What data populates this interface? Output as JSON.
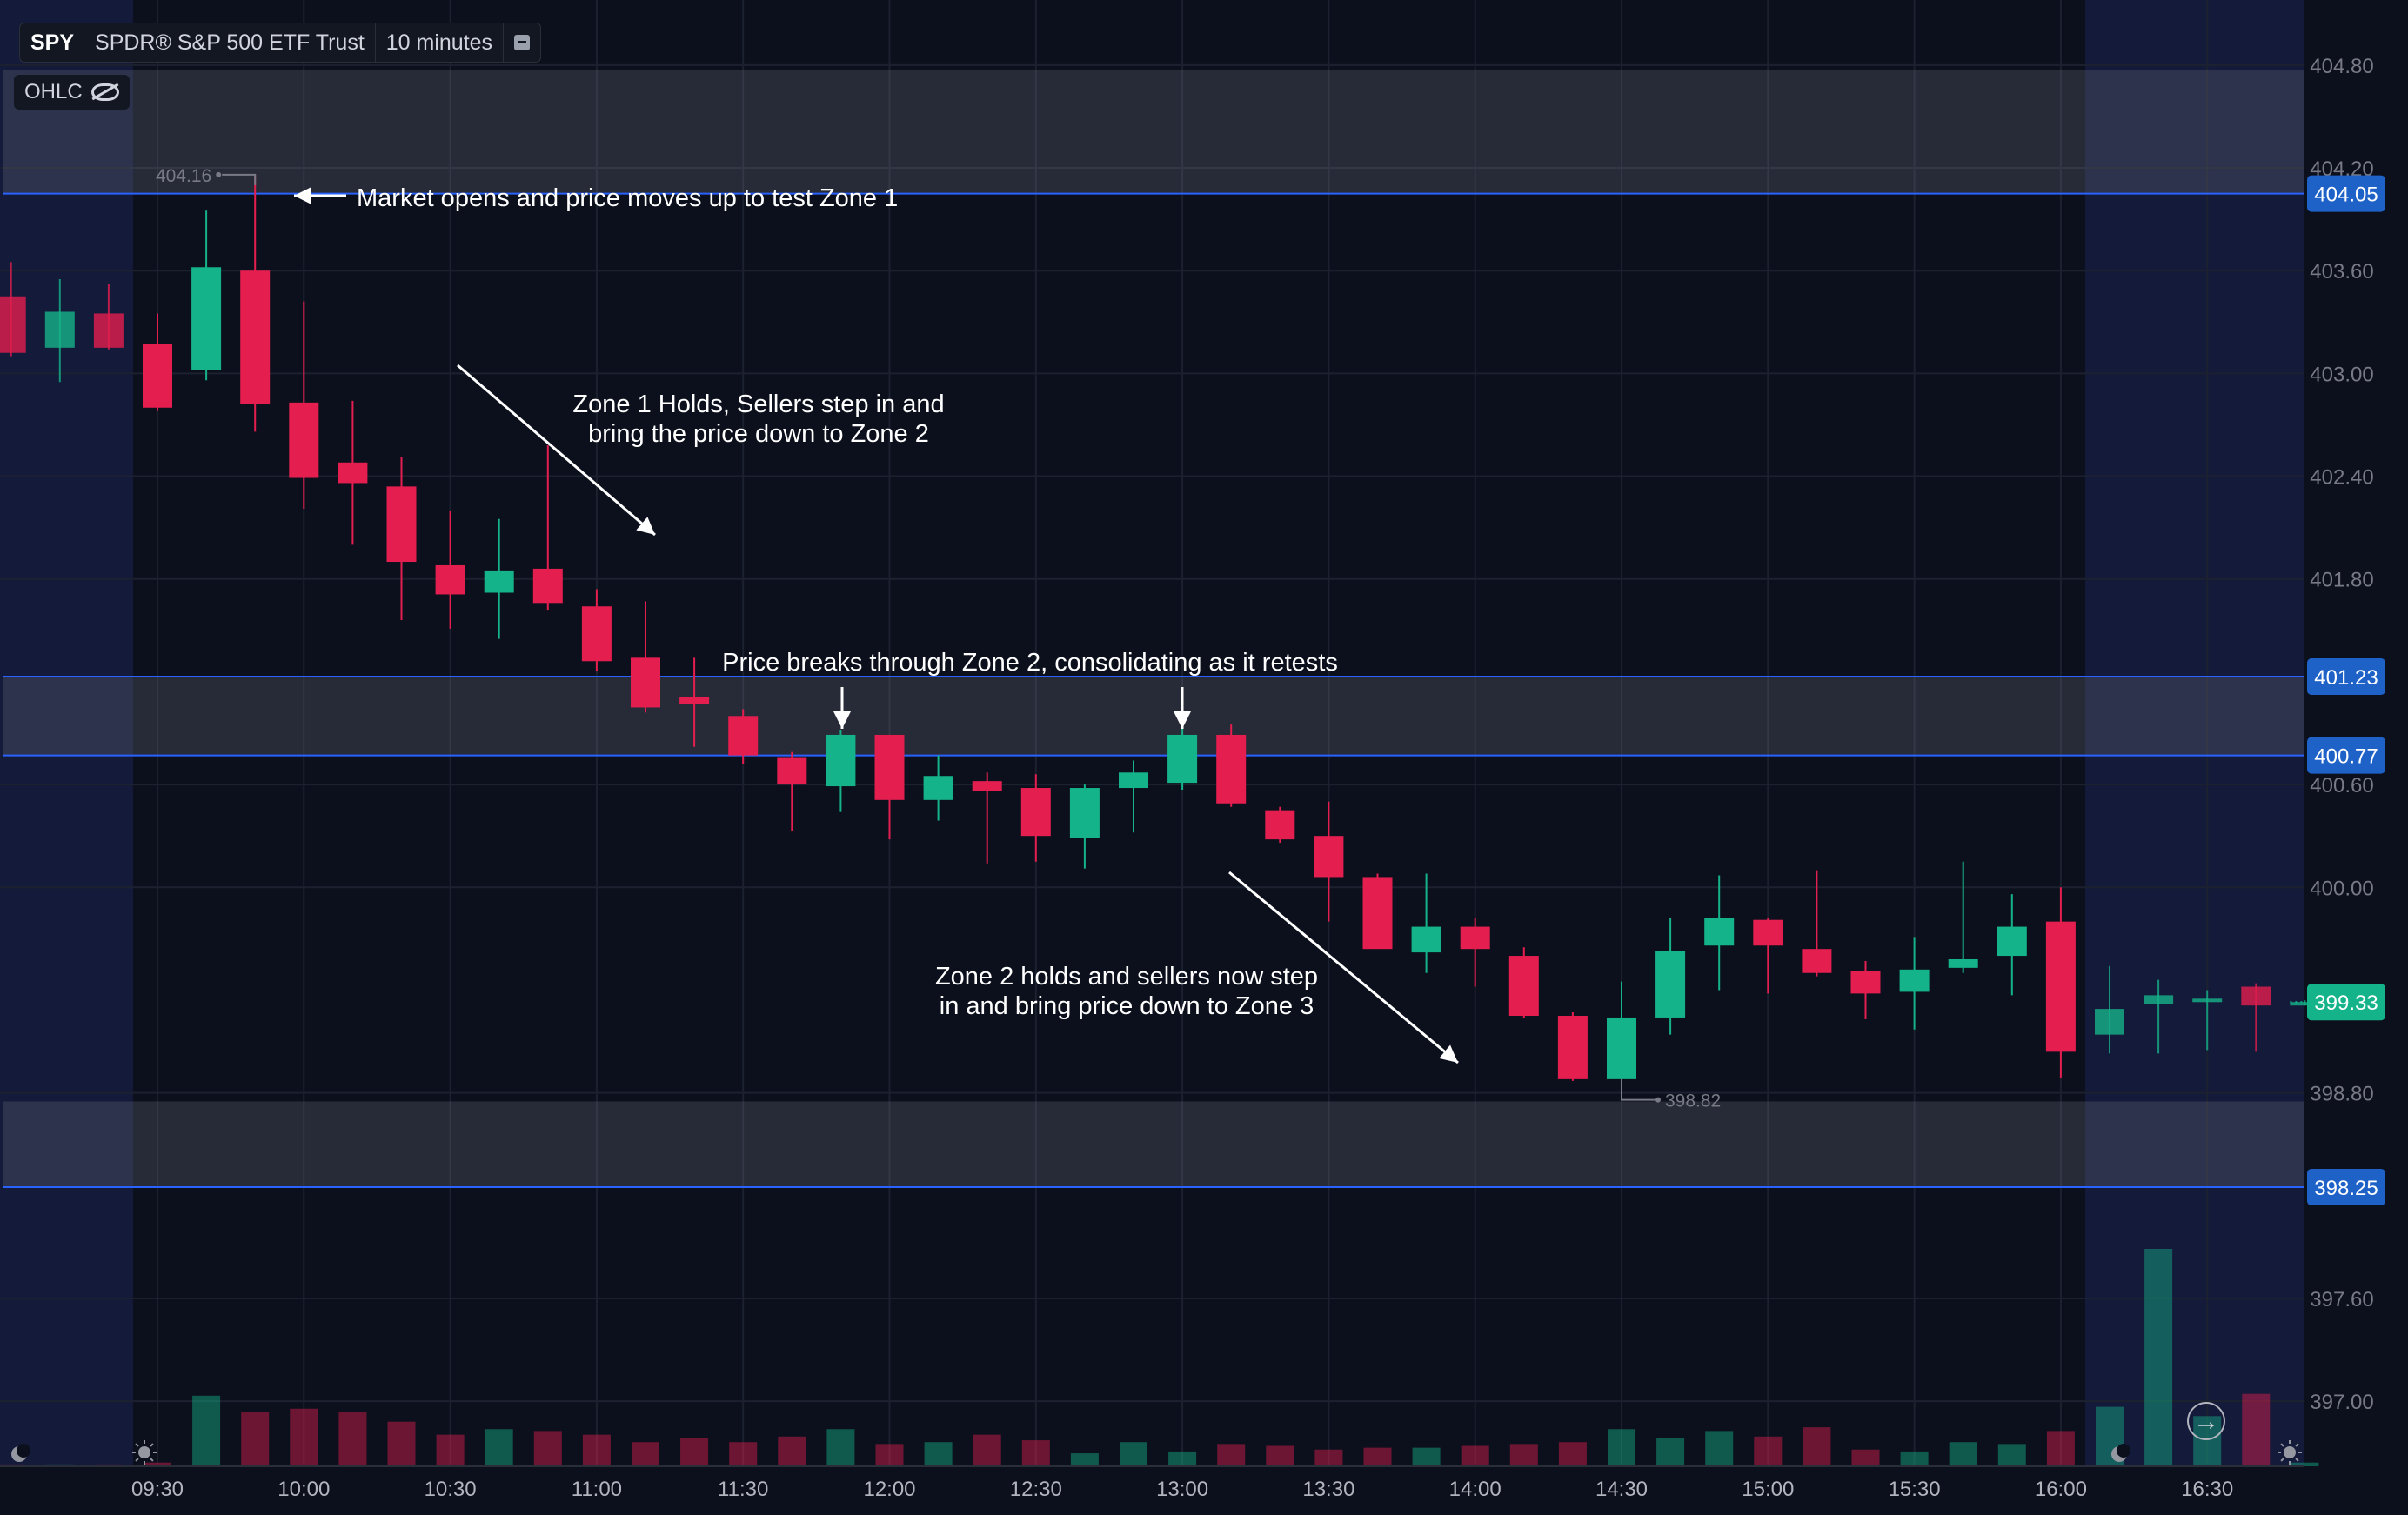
{
  "legend": {
    "symbol": "SPY",
    "name": "SPDR® S&P 500 ETF Trust",
    "interval": "10 minutes",
    "ohlc_label": "OHLC"
  },
  "colors": {
    "background": "#0c101c",
    "up": "#15b389",
    "down": "#e41e4f",
    "zone_line": "#2962ff",
    "badge": "#1e62c8",
    "last_price_badge": "#15b389",
    "extended_hours": "#141a3a"
  },
  "chart_data": {
    "type": "candlestick",
    "title": "SPY 10 minutes",
    "ylim": [
      396.62,
      405.18
    ],
    "y_ticks": [
      "404.80",
      "404.20",
      "403.60",
      "403.00",
      "402.40",
      "401.80",
      "400.60",
      "400.00",
      "398.80",
      "397.60",
      "397.00"
    ],
    "x_ticks": [
      "09:30",
      "10:00",
      "10:30",
      "11:00",
      "11:30",
      "12:00",
      "12:30",
      "13:00",
      "13:30",
      "14:00",
      "14:30",
      "15:00",
      "15:30",
      "16:00",
      "16:30"
    ],
    "candles": [
      {
        "time": "09:00",
        "open": 403.45,
        "high": 403.65,
        "low": 403.1,
        "close": 403.12
      },
      {
        "time": "09:10",
        "open": 403.15,
        "high": 403.55,
        "low": 402.95,
        "close": 403.36
      },
      {
        "time": "09:20",
        "open": 403.35,
        "high": 403.52,
        "low": 403.14,
        "close": 403.15
      },
      {
        "time": "09:30",
        "open": 403.17,
        "high": 403.35,
        "low": 402.78,
        "close": 402.8
      },
      {
        "time": "09:40",
        "open": 403.02,
        "high": 403.95,
        "low": 402.96,
        "close": 403.62
      },
      {
        "time": "09:50",
        "open": 403.6,
        "high": 404.16,
        "low": 402.66,
        "close": 402.82
      },
      {
        "time": "10:00",
        "open": 402.83,
        "high": 403.42,
        "low": 402.21,
        "close": 402.39
      },
      {
        "time": "10:10",
        "open": 402.48,
        "high": 402.84,
        "low": 402.0,
        "close": 402.36
      },
      {
        "time": "10:20",
        "open": 402.34,
        "high": 402.51,
        "low": 401.56,
        "close": 401.9
      },
      {
        "time": "10:30",
        "open": 401.88,
        "high": 402.2,
        "low": 401.51,
        "close": 401.71
      },
      {
        "time": "10:40",
        "open": 401.72,
        "high": 402.15,
        "low": 401.45,
        "close": 401.85
      },
      {
        "time": "10:50",
        "open": 401.86,
        "high": 402.58,
        "low": 401.62,
        "close": 401.66
      },
      {
        "time": "11:00",
        "open": 401.64,
        "high": 401.74,
        "low": 401.26,
        "close": 401.32
      },
      {
        "time": "11:10",
        "open": 401.34,
        "high": 401.67,
        "low": 401.02,
        "close": 401.05
      },
      {
        "time": "11:20",
        "open": 401.11,
        "high": 401.34,
        "low": 400.82,
        "close": 401.07
      },
      {
        "time": "11:30",
        "open": 401.0,
        "high": 401.04,
        "low": 400.72,
        "close": 400.77
      },
      {
        "time": "11:40",
        "open": 400.76,
        "high": 400.79,
        "low": 400.33,
        "close": 400.6
      },
      {
        "time": "11:50",
        "open": 400.59,
        "high": 400.92,
        "low": 400.44,
        "close": 400.89
      },
      {
        "time": "12:00",
        "open": 400.89,
        "high": 400.89,
        "low": 400.28,
        "close": 400.51
      },
      {
        "time": "12:10",
        "open": 400.51,
        "high": 400.77,
        "low": 400.39,
        "close": 400.65
      },
      {
        "time": "12:20",
        "open": 400.62,
        "high": 400.67,
        "low": 400.14,
        "close": 400.56
      },
      {
        "time": "12:30",
        "open": 400.58,
        "high": 400.66,
        "low": 400.15,
        "close": 400.3
      },
      {
        "time": "12:40",
        "open": 400.29,
        "high": 400.6,
        "low": 400.11,
        "close": 400.58
      },
      {
        "time": "12:50",
        "open": 400.58,
        "high": 400.74,
        "low": 400.32,
        "close": 400.67
      },
      {
        "time": "13:00",
        "open": 400.61,
        "high": 400.96,
        "low": 400.57,
        "close": 400.89
      },
      {
        "time": "13:10",
        "open": 400.89,
        "high": 400.95,
        "low": 400.47,
        "close": 400.49
      },
      {
        "time": "13:20",
        "open": 400.45,
        "high": 400.47,
        "low": 400.26,
        "close": 400.28
      },
      {
        "time": "13:30",
        "open": 400.3,
        "high": 400.5,
        "low": 399.8,
        "close": 400.06
      },
      {
        "time": "13:40",
        "open": 400.06,
        "high": 400.08,
        "low": 399.65,
        "close": 399.64
      },
      {
        "time": "13:50",
        "open": 399.62,
        "high": 400.08,
        "low": 399.5,
        "close": 399.77
      },
      {
        "time": "14:00",
        "open": 399.77,
        "high": 399.82,
        "low": 399.42,
        "close": 399.64
      },
      {
        "time": "14:10",
        "open": 399.6,
        "high": 399.65,
        "low": 399.24,
        "close": 399.25
      },
      {
        "time": "14:20",
        "open": 399.25,
        "high": 399.27,
        "low": 398.87,
        "close": 398.88
      },
      {
        "time": "14:30",
        "open": 398.88,
        "high": 399.45,
        "low": 398.82,
        "close": 399.24
      },
      {
        "time": "14:40",
        "open": 399.24,
        "high": 399.82,
        "low": 399.14,
        "close": 399.63
      },
      {
        "time": "14:50",
        "open": 399.66,
        "high": 400.07,
        "low": 399.4,
        "close": 399.82
      },
      {
        "time": "15:00",
        "open": 399.81,
        "high": 399.82,
        "low": 399.38,
        "close": 399.66
      },
      {
        "time": "15:10",
        "open": 399.64,
        "high": 400.1,
        "low": 399.48,
        "close": 399.5
      },
      {
        "time": "15:20",
        "open": 399.51,
        "high": 399.57,
        "low": 399.23,
        "close": 399.38
      },
      {
        "time": "15:30",
        "open": 399.39,
        "high": 399.71,
        "low": 399.17,
        "close": 399.52
      },
      {
        "time": "15:40",
        "open": 399.53,
        "high": 400.15,
        "low": 399.5,
        "close": 399.58
      },
      {
        "time": "15:50",
        "open": 399.6,
        "high": 399.96,
        "low": 399.37,
        "close": 399.77
      },
      {
        "time": "16:00",
        "open": 399.8,
        "high": 400.0,
        "low": 398.89,
        "close": 399.04
      },
      {
        "time": "16:10",
        "open": 399.14,
        "high": 399.54,
        "low": 399.03,
        "close": 399.29
      },
      {
        "time": "16:20",
        "open": 399.32,
        "high": 399.46,
        "low": 399.03,
        "close": 399.37
      },
      {
        "time": "16:30",
        "open": 399.33,
        "high": 399.4,
        "low": 399.05,
        "close": 399.35
      },
      {
        "time": "16:40",
        "open": 399.42,
        "high": 399.44,
        "low": 399.04,
        "close": 399.31
      },
      {
        "time": "16:50",
        "open": 399.32,
        "high": 399.34,
        "low": 399.31,
        "close": 399.33
      }
    ],
    "volume": [
      1,
      1,
      1,
      2,
      38,
      29,
      31,
      29,
      24,
      17,
      20,
      19,
      17,
      13,
      15,
      13,
      16,
      20,
      12,
      13,
      17,
      14,
      7,
      13,
      8,
      12,
      11,
      9,
      10,
      10,
      11,
      12,
      13,
      20,
      15,
      19,
      16,
      21,
      9,
      8,
      13,
      12,
      19,
      32,
      117,
      27,
      39,
      2
    ],
    "zones": [
      {
        "from": 404.05,
        "to": 404.77
      },
      {
        "from": 400.77,
        "to": 401.23
      },
      {
        "from": 398.25,
        "to": 398.75
      }
    ],
    "price_labels": [
      "404.05",
      "401.23",
      "400.77",
      "398.25"
    ],
    "last_price": "399.33",
    "high_marker": {
      "label": "404.16",
      "value": 404.16
    },
    "low_marker": {
      "label": "398.82",
      "value": 398.82
    },
    "annotations": [
      "Market opens and price moves up to test Zone 1",
      "Zone 1 Holds, Sellers step in and",
      "bring the price down to Zone 2",
      "Price breaks through Zone 2, consolidating as it retests",
      "Zone 2 holds and sellers now step",
      "in and bring price down to Zone 3"
    ]
  }
}
